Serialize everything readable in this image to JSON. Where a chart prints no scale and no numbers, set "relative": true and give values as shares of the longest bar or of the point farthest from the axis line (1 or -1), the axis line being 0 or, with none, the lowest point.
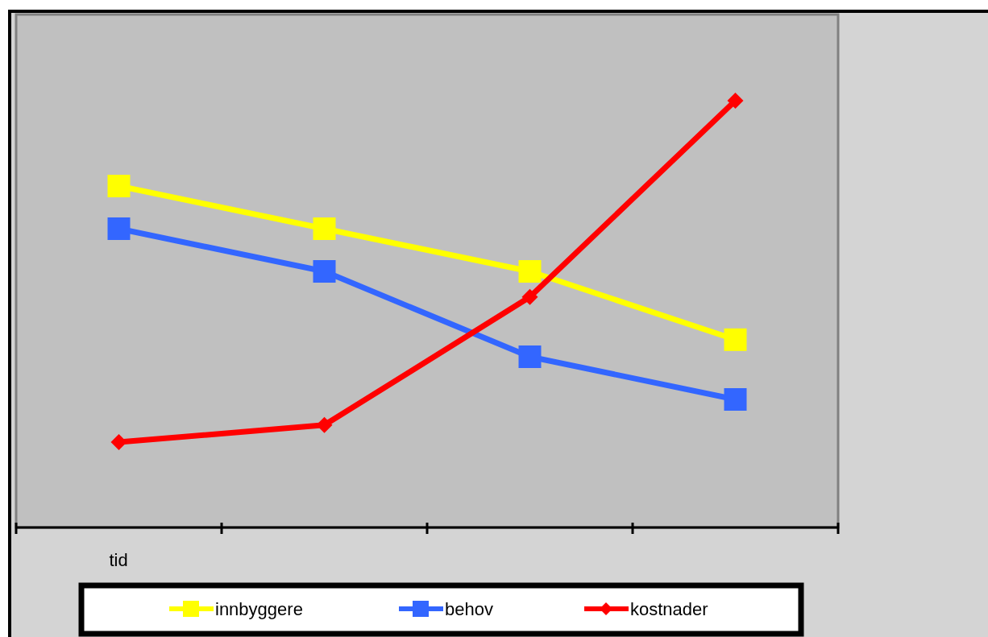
{
  "chart_data": {
    "type": "line",
    "relative": true,
    "xlabel": "tid",
    "categories": [
      null,
      null,
      null,
      null
    ],
    "legend": "bottom",
    "series": [
      {
        "name": "innbyggere",
        "color": "#ffff00",
        "marker": "square",
        "values": [
          0.8,
          0.7,
          0.6,
          0.44
        ]
      },
      {
        "name": "behov",
        "color": "#3366ff",
        "marker": "square",
        "values": [
          0.7,
          0.6,
          0.4,
          0.3
        ]
      },
      {
        "name": "kostnader",
        "color": "#ff0000",
        "marker": "diamond",
        "values": [
          0.2,
          0.24,
          0.54,
          1
        ]
      }
    ]
  }
}
